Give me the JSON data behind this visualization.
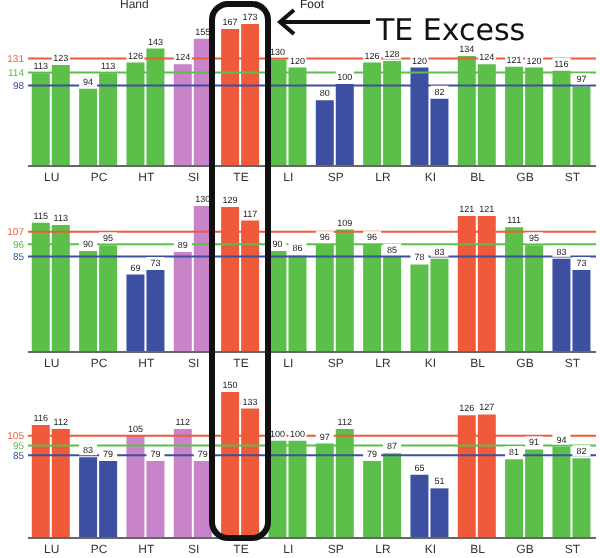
{
  "chart_data": [
    {
      "type": "bar",
      "annotations": [
        "Hand",
        "Foot",
        "TE Excess"
      ],
      "categories": [
        "LU",
        "PC",
        "HT",
        "SI",
        "TE",
        "LI",
        "SP",
        "LR",
        "KI",
        "BL",
        "GB",
        "ST"
      ],
      "data_labels": true,
      "series": [
        {
          "values": [
            113,
            94,
            126,
            124,
            167,
            130,
            80,
            126,
            120,
            134,
            121,
            116
          ],
          "colors": [
            "#5cbf4a",
            "#5cbf4a",
            "#5cbf4a",
            "#c983c8",
            "#ef5a3a",
            "#5cbf4a",
            "#3d4fa0",
            "#5cbf4a",
            "#3d4fa0",
            "#5cbf4a",
            "#5cbf4a",
            "#5cbf4a"
          ]
        },
        {
          "values": [
            123,
            113,
            143,
            155,
            173,
            120,
            100,
            128,
            82,
            124,
            120,
            97
          ],
          "colors": [
            "#5cbf4a",
            "#5cbf4a",
            "#5cbf4a",
            "#c983c8",
            "#ef5a3a",
            "#5cbf4a",
            "#3d4fa0",
            "#5cbf4a",
            "#3d4fa0",
            "#5cbf4a",
            "#5cbf4a",
            "#5cbf4a"
          ]
        }
      ],
      "ref_lines": [
        {
          "axis": "y",
          "value": 131,
          "label": "131",
          "color": "#ef5a3a"
        },
        {
          "axis": "y",
          "value": 114,
          "label": "114",
          "color": "#5cbf4a"
        },
        {
          "axis": "y",
          "value": 98,
          "label": "98",
          "color": "#3d4fa0"
        }
      ]
    },
    {
      "type": "bar",
      "categories": [
        "LU",
        "PC",
        "HT",
        "SI",
        "TE",
        "LI",
        "SP",
        "LR",
        "KI",
        "BL",
        "GB",
        "ST"
      ],
      "data_labels": true,
      "series": [
        {
          "values": [
            115,
            90,
            69,
            89,
            129,
            90,
            96,
            96,
            78,
            121,
            111,
            83
          ],
          "colors": [
            "#5cbf4a",
            "#5cbf4a",
            "#3d4fa0",
            "#c983c8",
            "#ef5a3a",
            "#5cbf4a",
            "#5cbf4a",
            "#5cbf4a",
            "#5cbf4a",
            "#ef5a3a",
            "#5cbf4a",
            "#3d4fa0"
          ]
        },
        {
          "values": [
            113,
            95,
            73,
            130,
            117,
            86,
            109,
            85,
            83,
            121,
            95,
            73
          ],
          "colors": [
            "#5cbf4a",
            "#5cbf4a",
            "#3d4fa0",
            "#c983c8",
            "#ef5a3a",
            "#5cbf4a",
            "#5cbf4a",
            "#5cbf4a",
            "#5cbf4a",
            "#ef5a3a",
            "#5cbf4a",
            "#3d4fa0"
          ]
        }
      ],
      "ref_lines": [
        {
          "axis": "y",
          "value": 107,
          "label": "107",
          "color": "#ef5a3a"
        },
        {
          "axis": "y",
          "value": 96,
          "label": "96",
          "color": "#5cbf4a"
        },
        {
          "axis": "y",
          "value": 85,
          "label": "85",
          "color": "#3d4fa0"
        }
      ]
    },
    {
      "type": "bar",
      "categories": [
        "LU",
        "PC",
        "HT",
        "SI",
        "TE",
        "LI",
        "SP",
        "LR",
        "KI",
        "BL",
        "GB",
        "ST"
      ],
      "data_labels": true,
      "series": [
        {
          "values": [
            116,
            83,
            105,
            112,
            150,
            100,
            97,
            79,
            65,
            126,
            81,
            94
          ],
          "colors": [
            "#ef5a3a",
            "#3d4fa0",
            "#c983c8",
            "#c983c8",
            "#ef5a3a",
            "#5cbf4a",
            "#5cbf4a",
            "#5cbf4a",
            "#3d4fa0",
            "#ef5a3a",
            "#5cbf4a",
            "#5cbf4a"
          ]
        },
        {
          "values": [
            112,
            79,
            79,
            79,
            133,
            100,
            112,
            87,
            51,
            127,
            91,
            82
          ],
          "colors": [
            "#ef5a3a",
            "#3d4fa0",
            "#c983c8",
            "#c983c8",
            "#ef5a3a",
            "#5cbf4a",
            "#5cbf4a",
            "#5cbf4a",
            "#3d4fa0",
            "#ef5a3a",
            "#5cbf4a",
            "#5cbf4a"
          ]
        }
      ],
      "ref_lines": [
        {
          "axis": "y",
          "value": 105,
          "label": "105",
          "color": "#ef5a3a"
        },
        {
          "axis": "y",
          "value": 95,
          "label": "95",
          "color": "#5cbf4a"
        },
        {
          "axis": "y",
          "value": 85,
          "label": "85",
          "color": "#3d4fa0"
        }
      ]
    }
  ]
}
